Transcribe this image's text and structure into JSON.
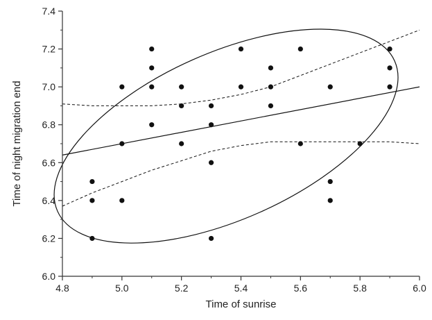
{
  "chart_data": {
    "type": "scatter",
    "title": "",
    "xlabel": "Time of sunrise",
    "ylabel": "Time of night migration end",
    "xlim": [
      4.8,
      6.0
    ],
    "ylim": [
      6.0,
      7.4
    ],
    "x_ticks": [
      "4.8",
      "5.0",
      "5.2",
      "5.4",
      "5.6",
      "5.8",
      "6.0"
    ],
    "y_ticks": [
      "6.0",
      "6.2",
      "6.4",
      "6.6",
      "6.8",
      "7.0",
      "7.2",
      "7.4"
    ],
    "grid": false,
    "colors": {
      "points": "#111111",
      "lines": "#111111",
      "axes": "#333333"
    },
    "points": [
      {
        "x": 4.9,
        "y": 6.2
      },
      {
        "x": 4.9,
        "y": 6.4
      },
      {
        "x": 4.9,
        "y": 6.5
      },
      {
        "x": 5.0,
        "y": 6.4
      },
      {
        "x": 5.0,
        "y": 6.7
      },
      {
        "x": 5.0,
        "y": 7.0
      },
      {
        "x": 5.1,
        "y": 6.8
      },
      {
        "x": 5.1,
        "y": 7.0
      },
      {
        "x": 5.1,
        "y": 7.1
      },
      {
        "x": 5.1,
        "y": 7.2
      },
      {
        "x": 5.2,
        "y": 6.7
      },
      {
        "x": 5.2,
        "y": 6.9
      },
      {
        "x": 5.2,
        "y": 7.0
      },
      {
        "x": 5.3,
        "y": 6.2
      },
      {
        "x": 5.3,
        "y": 6.6
      },
      {
        "x": 5.3,
        "y": 6.8
      },
      {
        "x": 5.3,
        "y": 6.9
      },
      {
        "x": 5.4,
        "y": 7.0
      },
      {
        "x": 5.4,
        "y": 7.2
      },
      {
        "x": 5.5,
        "y": 6.9
      },
      {
        "x": 5.5,
        "y": 7.0
      },
      {
        "x": 5.5,
        "y": 7.1
      },
      {
        "x": 5.6,
        "y": 6.7
      },
      {
        "x": 5.6,
        "y": 7.2
      },
      {
        "x": 5.7,
        "y": 6.4
      },
      {
        "x": 5.7,
        "y": 6.5
      },
      {
        "x": 5.7,
        "y": 7.0
      },
      {
        "x": 5.8,
        "y": 6.7
      },
      {
        "x": 5.9,
        "y": 7.0
      },
      {
        "x": 5.9,
        "y": 7.1
      },
      {
        "x": 5.9,
        "y": 7.2
      }
    ],
    "regression_line": {
      "x": [
        4.8,
        6.0
      ],
      "y": [
        6.64,
        7.0
      ]
    },
    "confidence_band_upper": {
      "x": [
        4.8,
        4.9,
        5.0,
        5.1,
        5.2,
        5.3,
        5.4,
        5.5,
        5.6,
        5.7,
        5.8,
        5.9,
        6.0
      ],
      "y": [
        6.91,
        6.9,
        6.9,
        6.9,
        6.91,
        6.93,
        6.96,
        7.0,
        7.06,
        7.12,
        7.18,
        7.24,
        7.3
      ]
    },
    "confidence_band_lower": {
      "x": [
        4.8,
        4.9,
        5.0,
        5.1,
        5.2,
        5.3,
        5.4,
        5.5,
        5.6,
        5.7,
        5.8,
        5.9,
        6.0
      ],
      "y": [
        6.37,
        6.44,
        6.5,
        6.56,
        6.61,
        6.66,
        6.69,
        6.71,
        6.71,
        6.71,
        6.71,
        6.71,
        6.7
      ]
    },
    "ellipse": {
      "center": {
        "x": 5.35,
        "y": 6.74
      },
      "semi_axis_x": 0.62,
      "semi_axis_y": 0.44,
      "rotation_deg": 24
    }
  }
}
